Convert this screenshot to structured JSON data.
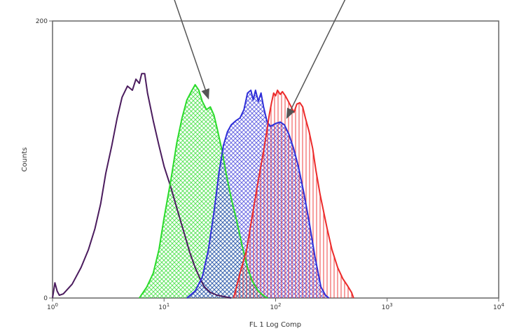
{
  "chart_data": {
    "type": "area",
    "title": "",
    "xlabel": "FL 1 Log Comp",
    "ylabel": "Counts",
    "x_scale": "log",
    "xlim": [
      1,
      10000
    ],
    "ylim": [
      0,
      200
    ],
    "x_ticks": [
      "10^0",
      "10^1",
      "10^2",
      "10^3",
      "10^4"
    ],
    "y_ticks": [
      "0",
      "200"
    ],
    "grid": false,
    "legend": "none",
    "series": [
      {
        "color": "#4b1c5e",
        "fill": "none",
        "points": [
          [
            1.0,
            0
          ],
          [
            1.05,
            11
          ],
          [
            1.1,
            5
          ],
          [
            1.15,
            2
          ],
          [
            1.25,
            3
          ],
          [
            1.5,
            10
          ],
          [
            1.8,
            22
          ],
          [
            2.1,
            35
          ],
          [
            2.4,
            50
          ],
          [
            2.7,
            68
          ],
          [
            3.0,
            90
          ],
          [
            3.4,
            110
          ],
          [
            3.8,
            130
          ],
          [
            4.2,
            145
          ],
          [
            4.7,
            153
          ],
          [
            5.2,
            150
          ],
          [
            5.6,
            158
          ],
          [
            6.0,
            155
          ],
          [
            6.3,
            162
          ],
          [
            6.7,
            162
          ],
          [
            7.1,
            148
          ],
          [
            8.0,
            128
          ],
          [
            9.0,
            110
          ],
          [
            10.0,
            95
          ],
          [
            11.5,
            80
          ],
          [
            13.0,
            65
          ],
          [
            15.0,
            48
          ],
          [
            17.0,
            33
          ],
          [
            19.0,
            22
          ],
          [
            21.0,
            14
          ],
          [
            23.0,
            8
          ],
          [
            26.0,
            4
          ],
          [
            30.0,
            2
          ],
          [
            40.0,
            0
          ]
        ]
      },
      {
        "color": "#2bdb2b",
        "fill": "crosshatch",
        "points": [
          [
            6.0,
            0
          ],
          [
            7.0,
            8
          ],
          [
            8.0,
            18
          ],
          [
            9.0,
            35
          ],
          [
            10.0,
            58
          ],
          [
            11.5,
            85
          ],
          [
            13.0,
            112
          ],
          [
            14.5,
            130
          ],
          [
            16.0,
            143
          ],
          [
            17.5,
            149
          ],
          [
            19.0,
            154
          ],
          [
            20.5,
            150
          ],
          [
            22.0,
            142
          ],
          [
            24.0,
            136
          ],
          [
            26.0,
            138
          ],
          [
            28.0,
            132
          ],
          [
            30.0,
            122
          ],
          [
            33.0,
            107
          ],
          [
            36.0,
            90
          ],
          [
            40.0,
            72
          ],
          [
            45.0,
            55
          ],
          [
            50.0,
            38
          ],
          [
            56.0,
            22
          ],
          [
            62.0,
            12
          ],
          [
            70.0,
            5
          ],
          [
            80.0,
            1
          ],
          [
            85.0,
            0
          ]
        ]
      },
      {
        "color": "#2f2fd8",
        "fill": "crosshatch",
        "points": [
          [
            16.0,
            0
          ],
          [
            19.0,
            5
          ],
          [
            22.0,
            15
          ],
          [
            25.0,
            35
          ],
          [
            28.0,
            62
          ],
          [
            31.0,
            90
          ],
          [
            34.0,
            110
          ],
          [
            37.0,
            120
          ],
          [
            40.0,
            125
          ],
          [
            44.0,
            128
          ],
          [
            48.0,
            130
          ],
          [
            52.0,
            136
          ],
          [
            56.0,
            148
          ],
          [
            60.0,
            150
          ],
          [
            63.0,
            143
          ],
          [
            66.0,
            150
          ],
          [
            70.0,
            142
          ],
          [
            74.0,
            148
          ],
          [
            78.0,
            138
          ],
          [
            84.0,
            127
          ],
          [
            90.0,
            124
          ],
          [
            100.0,
            126
          ],
          [
            110.0,
            127
          ],
          [
            120.0,
            125
          ],
          [
            132.0,
            118
          ],
          [
            145.0,
            108
          ],
          [
            160.0,
            95
          ],
          [
            180.0,
            75
          ],
          [
            200.0,
            55
          ],
          [
            225.0,
            30
          ],
          [
            255.0,
            8
          ],
          [
            280.0,
            2
          ],
          [
            300.0,
            0
          ]
        ]
      },
      {
        "color": "#ec2a2a",
        "fill": "vertical-lines",
        "points": [
          [
            42.0,
            0
          ],
          [
            48.0,
            18
          ],
          [
            55.0,
            35
          ],
          [
            62.0,
            60
          ],
          [
            70.0,
            85
          ],
          [
            78.0,
            106
          ],
          [
            84.0,
            122
          ],
          [
            88.0,
            133
          ],
          [
            92.0,
            141
          ],
          [
            96.0,
            148
          ],
          [
            100.0,
            146
          ],
          [
            104.0,
            150
          ],
          [
            110.0,
            147
          ],
          [
            115.0,
            149
          ],
          [
            122.0,
            146
          ],
          [
            130.0,
            142
          ],
          [
            138.0,
            138
          ],
          [
            146.0,
            134
          ],
          [
            155.0,
            140
          ],
          [
            165.0,
            141
          ],
          [
            175.0,
            138
          ],
          [
            185.0,
            130
          ],
          [
            200.0,
            120
          ],
          [
            215.0,
            108
          ],
          [
            230.0,
            92
          ],
          [
            250.0,
            75
          ],
          [
            270.0,
            62
          ],
          [
            290.0,
            50
          ],
          [
            320.0,
            35
          ],
          [
            360.0,
            22
          ],
          [
            400.0,
            14
          ],
          [
            440.0,
            9
          ],
          [
            480.0,
            4
          ],
          [
            500.0,
            0
          ]
        ]
      }
    ],
    "annotations": [
      {
        "type": "arrow",
        "from": [
          10.5,
          232
        ],
        "to": [
          25.0,
          144
        ]
      },
      {
        "type": "arrow",
        "from": [
          530.0,
          232
        ],
        "to": [
          126.0,
          130
        ]
      }
    ]
  }
}
